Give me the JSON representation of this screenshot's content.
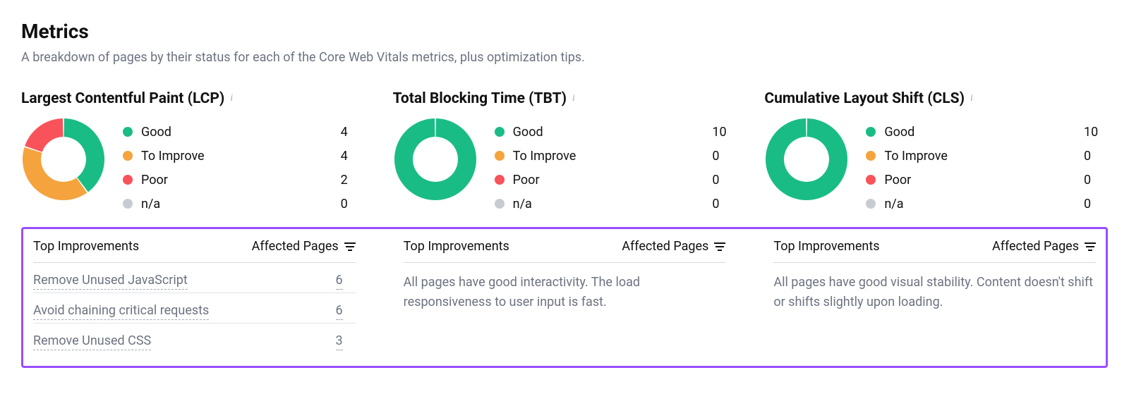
{
  "page": {
    "title": "Metrics",
    "subtitle": "A breakdown of pages by their status for each of the Core Web Vitals metrics, plus optimization tips."
  },
  "colors": {
    "good": "#1abc86",
    "to_improve": "#f5a33c",
    "poor": "#f8535a",
    "na": "#c8ccd2",
    "text": "#111111",
    "muted": "#6c7380",
    "highlight_border": "#9a4dff",
    "divider": "#d5d8dd",
    "donut_bg": "#ffffff"
  },
  "legend_labels": {
    "good": "Good",
    "to_improve": "To Improve",
    "poor": "Poor",
    "na": "n/a"
  },
  "improvements_header": {
    "col_improve": "Top Improvements",
    "col_affected": "Affected Pages"
  },
  "metrics": [
    {
      "key": "lcp",
      "title": "Largest Contentful Paint (LCP)",
      "counts": {
        "good": 4,
        "to_improve": 4,
        "poor": 2,
        "na": 0
      },
      "donut": {
        "type": "donut",
        "slices": [
          {
            "label": "Good",
            "value": 4,
            "color": "#1abc86"
          },
          {
            "label": "To Improve",
            "value": 4,
            "color": "#f5a33c"
          },
          {
            "label": "Poor",
            "value": 2,
            "color": "#f8535a"
          }
        ],
        "total": 10,
        "start_angle_deg": 0,
        "gap_deg": 2,
        "outer_radius": 58,
        "inner_radius": 32,
        "background_color": "#ffffff"
      },
      "improvements": [
        {
          "label": "Remove Unused JavaScript",
          "affected": 6
        },
        {
          "label": "Avoid chaining critical requests",
          "affected": 6
        },
        {
          "label": "Remove Unused CSS",
          "affected": 3
        }
      ],
      "message": null
    },
    {
      "key": "tbt",
      "title": "Total Blocking Time (TBT)",
      "counts": {
        "good": 10,
        "to_improve": 0,
        "poor": 0,
        "na": 0
      },
      "donut": {
        "type": "donut",
        "slices": [
          {
            "label": "Good",
            "value": 10,
            "color": "#1abc86"
          }
        ],
        "total": 10,
        "start_angle_deg": 0,
        "gap_deg": 2,
        "outer_radius": 58,
        "inner_radius": 32,
        "background_color": "#ffffff"
      },
      "improvements": [],
      "message": "All pages have good interactivity. The load responsiveness to user input is fast."
    },
    {
      "key": "cls",
      "title": "Cumulative Layout Shift (CLS)",
      "counts": {
        "good": 10,
        "to_improve": 0,
        "poor": 0,
        "na": 0
      },
      "donut": {
        "type": "donut",
        "slices": [
          {
            "label": "Good",
            "value": 10,
            "color": "#1abc86"
          }
        ],
        "total": 10,
        "start_angle_deg": 0,
        "gap_deg": 2,
        "outer_radius": 58,
        "inner_radius": 32,
        "background_color": "#ffffff"
      },
      "improvements": [],
      "message": "All pages have good visual stability. Content doesn't shift or shifts slightly upon loading."
    }
  ]
}
